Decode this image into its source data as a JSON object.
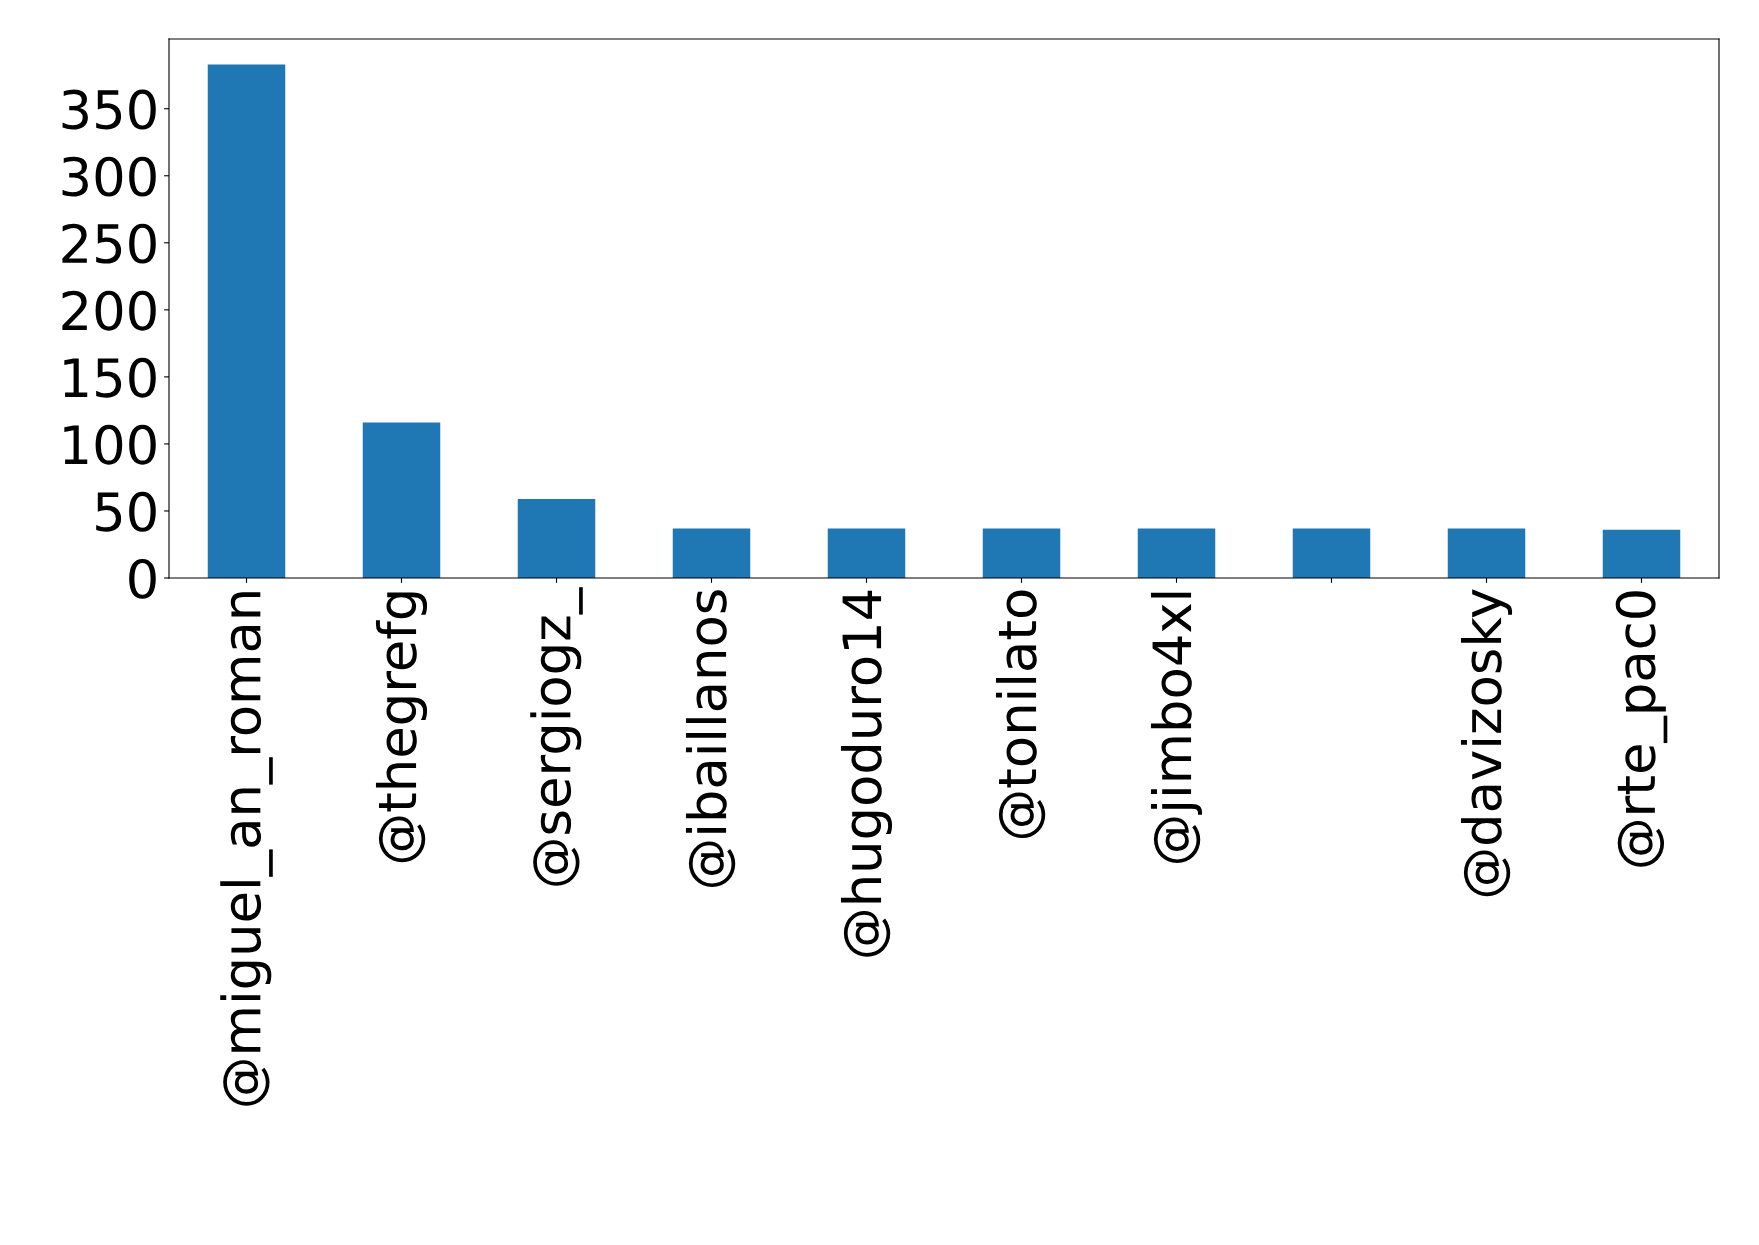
{
  "chart_data": {
    "type": "bar",
    "categories": [
      "@miguel_an_roman",
      "@thegrefg",
      "@sergiogz_",
      "@ibaillanos",
      "@hugoduro14",
      "@tonilato",
      "@jimbo4xl",
      null,
      "@davizosky",
      "@rte_pac0"
    ],
    "values": [
      383,
      116,
      59,
      37,
      37,
      37,
      37,
      37,
      37,
      36
    ],
    "color": "#1f77b4",
    "ylim": [
      0,
      402
    ],
    "yticks": [
      0,
      50,
      100,
      150,
      200,
      250,
      300,
      350
    ],
    "grid": false,
    "legend": false
  }
}
